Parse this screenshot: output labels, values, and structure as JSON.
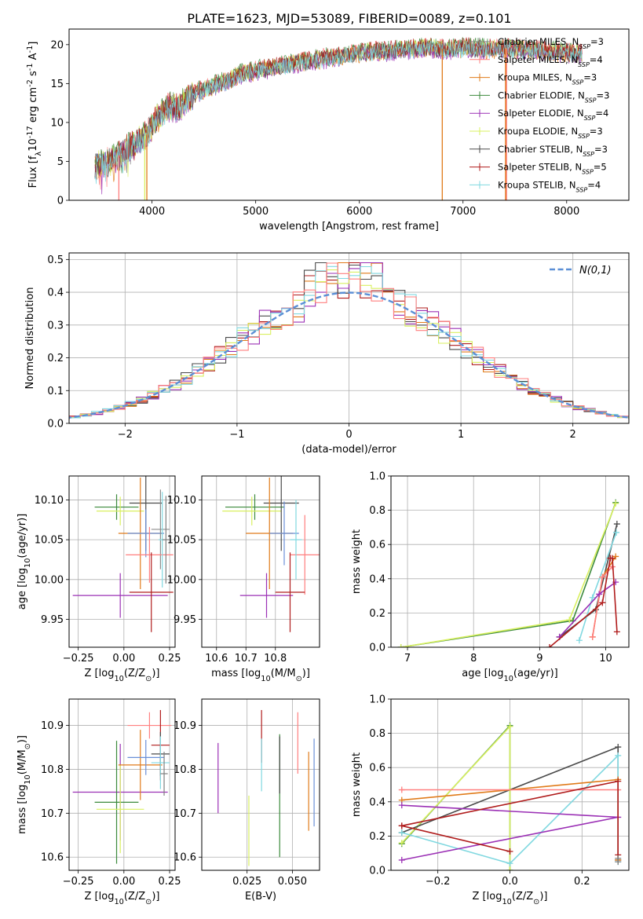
{
  "figure_title": "PLATE=1623, MJD=53089, FIBERID=0089, z=0.101",
  "colors": {
    "Chabrier MILES": "#7f7f7f",
    "Salpeter MILES": "#ff7f7f",
    "Kroupa MILES": "#e07b1a",
    "Chabrier ELODIE": "#3c8a3c",
    "Salpeter ELODIE": "#9b30b5",
    "Kroupa ELODIE": "#d9f060",
    "Chabrier STELIB": "#4a4a4a",
    "Salpeter STELIB": "#b01c1c",
    "Kroupa STELIB": "#80d8e0",
    "extra_gray": "#8c8c8c",
    "extra_blue": "#6a8fd8",
    "normal_curve": "#5b8fd6"
  },
  "chart_data": [
    {
      "id": "spectrum",
      "type": "line",
      "xlabel": "wavelength [Angstrom, rest frame]",
      "ylabel": "Flux [f$_\\lambda$10$^{-17}$ erg cm$^{-2}$ s$^{-1}$ A$^{-1}$]",
      "xlim": [
        3200,
        8600
      ],
      "ylim": [
        0,
        22
      ],
      "xticks": [
        4000,
        5000,
        6000,
        7000,
        8000
      ],
      "yticks": [
        0,
        5,
        10,
        15,
        20
      ],
      "grid": false,
      "legend_position": "top-right",
      "legend": [
        {
          "model": "Chabrier MILES",
          "nssp": "3"
        },
        {
          "model": "Salpeter MILES",
          "nssp": "4"
        },
        {
          "model": "Kroupa MILES",
          "nssp": "3"
        },
        {
          "model": "Chabrier ELODIE",
          "nssp": "3"
        },
        {
          "model": "Salpeter ELODIE",
          "nssp": "4"
        },
        {
          "model": "Kroupa ELODIE",
          "nssp": "3"
        },
        {
          "model": "Chabrier STELIB",
          "nssp": "3"
        },
        {
          "model": "Salpeter STELIB",
          "nssp": "5"
        },
        {
          "model": "Kroupa STELIB",
          "nssp": "4"
        }
      ],
      "data_series": {
        "x": [
          3450,
          3550,
          3650,
          3750,
          3850,
          3950,
          4050,
          4150,
          4250,
          4350,
          4450,
          4550,
          4650,
          4750,
          4850,
          4950,
          5050,
          5150,
          5250,
          5350,
          5450,
          5550,
          5650,
          5750,
          5850,
          5950,
          6050,
          6150,
          6250,
          6350,
          6450,
          6550,
          6650,
          6750,
          6850,
          6950,
          7050,
          7150,
          7250,
          7350,
          7450,
          7550,
          7650,
          7750,
          7850,
          7950,
          8050,
          8150
        ],
        "y": [
          4.5,
          4.8,
          5.5,
          6.5,
          7.5,
          8.5,
          10.5,
          12.0,
          11.8,
          13.0,
          14.0,
          14.5,
          15.0,
          15.5,
          16.2,
          16.5,
          16.8,
          17.0,
          17.3,
          17.6,
          17.8,
          18.0,
          18.2,
          18.4,
          18.6,
          18.8,
          19.0,
          19.2,
          19.1,
          19.3,
          19.4,
          19.5,
          19.6,
          19.5,
          19.4,
          19.5,
          19.6,
          19.5,
          19.4,
          19.5,
          19.5,
          19.4,
          19.3,
          19.2,
          19.1,
          19.0,
          18.9,
          18.8
        ]
      },
      "model_offsets": [
        0.0,
        0.2,
        -0.2,
        0.3,
        -0.3,
        0.1,
        -0.1,
        0.25,
        -0.15
      ],
      "dropouts": [
        {
          "model": "Salpeter MILES",
          "x": 3680
        },
        {
          "model": "Kroupa MILES",
          "x": 3950
        },
        {
          "model": "Kroupa ELODIE",
          "x": 3930
        },
        {
          "model": "Kroupa MILES",
          "x": 6800
        },
        {
          "model": "Salpeter MILES",
          "x": 7420
        },
        {
          "model": "Kroupa MILES",
          "x": 7410
        }
      ]
    },
    {
      "id": "residuals",
      "type": "line",
      "xlabel": "(data-model)/error",
      "ylabel": "Normed distribution",
      "xlim": [
        -2.5,
        2.5
      ],
      "ylim": [
        0,
        0.52
      ],
      "xticks": [
        -2,
        -1,
        0,
        1,
        2
      ],
      "yticks": [
        0.0,
        0.1,
        0.2,
        0.3,
        0.4,
        0.5
      ],
      "grid": true,
      "legend_position": "top-right",
      "legend": [
        "$\\mathcal{N}(0,1)$"
      ],
      "bin_width": 0.1,
      "series": [
        {
          "model": "Kroupa MILES",
          "jitter_seed": 1
        },
        {
          "model": "Salpeter STELIB",
          "jitter_seed": 2
        },
        {
          "model": "Chabrier STELIB",
          "jitter_seed": 3
        },
        {
          "model": "Salpeter ELODIE",
          "jitter_seed": 4
        },
        {
          "model": "Kroupa ELODIE",
          "jitter_seed": 5
        },
        {
          "model": "Kroupa STELIB",
          "jitter_seed": 6
        },
        {
          "model": "Salpeter MILES",
          "jitter_seed": 7
        }
      ],
      "peak_value": 0.49
    },
    {
      "id": "age_vs_z",
      "type": "scatter",
      "xlabel": "Z [log$_{10}$(Z/Z$_\\odot$)]",
      "ylabel": "age  [log$_{10}$($age/yr$)]",
      "xlim": [
        -0.3,
        0.28
      ],
      "ylim": [
        9.915,
        10.13
      ],
      "xticks": [
        -0.25,
        0.0,
        0.25
      ],
      "xticklabels": [
        "−0.25",
        "0.00",
        "0.25"
      ],
      "yticks": [
        9.95,
        10.0,
        10.05,
        10.1
      ],
      "yticklabels": [
        "9.95",
        "10.00",
        "10.05",
        "10.10"
      ],
      "grid": true,
      "points": [
        {
          "model": "Chabrier ELODIE",
          "x": -0.04,
          "y": 10.091,
          "xerr": 0.12,
          "yerr": 0.016
        },
        {
          "model": "Kroupa ELODIE",
          "x": -0.02,
          "y": 10.086,
          "xerr": 0.13,
          "yerr": 0.018
        },
        {
          "model": "Salpeter ELODIE",
          "x": -0.02,
          "y": 9.98,
          "xerr": 0.26,
          "yerr": 0.028
        },
        {
          "model": "Chabrier STELIB",
          "x": 0.12,
          "y": 10.096,
          "xerr": 0.09,
          "yerr": 0.06
        },
        {
          "model": "Kroupa MILES",
          "x": 0.09,
          "y": 10.058,
          "xerr": 0.12,
          "yerr": 0.07
        },
        {
          "model": "extra_blue",
          "x": 0.12,
          "y": 10.058,
          "xerr": 0.1,
          "yerr": 0.03
        },
        {
          "model": "extra_gray",
          "x": 0.2,
          "y": 10.063,
          "xerr": 0.05,
          "yerr": 0.05
        },
        {
          "model": "Salpeter MILES",
          "x": 0.14,
          "y": 10.031,
          "xerr": 0.13,
          "yerr": 0.035
        },
        {
          "model": "Kroupa STELIB",
          "x": 0.21,
          "y": 10.05,
          "xerr": 0.02,
          "yerr": 0.06
        },
        {
          "model": "Salpeter STELIB",
          "x": 0.15,
          "y": 9.984,
          "xerr": 0.12,
          "yerr": 0.05
        },
        {
          "model": "Chabrier MILES",
          "x": 0.23,
          "y": 10.05,
          "xerr": 0.02,
          "yerr": 0.055
        }
      ]
    },
    {
      "id": "age_vs_mass",
      "type": "scatter",
      "xlabel": "mass [log$_{10}$($M/M_\\odot$)]",
      "ylabel": "",
      "xlim": [
        10.55,
        10.95
      ],
      "ylim": [
        9.915,
        10.13
      ],
      "xticks": [
        10.6,
        10.7,
        10.8
      ],
      "yticks": [
        9.95,
        10.0,
        10.05,
        10.1
      ],
      "yticklabels": [
        "9.95",
        "10.00",
        "10.05",
        "10.10"
      ],
      "grid": true,
      "points": [
        {
          "model": "Chabrier ELODIE",
          "x": 10.73,
          "y": 10.091,
          "xerr": 0.1,
          "yerr": 0.016
        },
        {
          "model": "Kroupa ELODIE",
          "x": 10.72,
          "y": 10.086,
          "xerr": 0.1,
          "yerr": 0.018
        },
        {
          "model": "Salpeter ELODIE",
          "x": 10.77,
          "y": 9.98,
          "xerr": 0.09,
          "yerr": 0.028
        },
        {
          "model": "Chabrier STELIB",
          "x": 10.82,
          "y": 10.096,
          "xerr": 0.06,
          "yerr": 0.06
        },
        {
          "model": "Kroupa MILES",
          "x": 10.78,
          "y": 10.058,
          "xerr": 0.08,
          "yerr": 0.07
        },
        {
          "model": "extra_blue",
          "x": 10.83,
          "y": 10.058,
          "xerr": 0.05,
          "yerr": 0.04
        },
        {
          "model": "Salpeter MILES",
          "x": 10.9,
          "y": 10.031,
          "xerr": 0.05,
          "yerr": 0.05
        },
        {
          "model": "Salpeter STELIB",
          "x": 10.85,
          "y": 9.984,
          "xerr": 0.05,
          "yerr": 0.05
        },
        {
          "model": "Kroupa STELIB",
          "x": 10.87,
          "y": 10.05,
          "xerr": 0.02,
          "yerr": 0.05
        }
      ]
    },
    {
      "id": "massweight_vs_age",
      "type": "line",
      "xlabel": "age  [log$_{10}$($age/yr$)]",
      "ylabel": "mass weight",
      "xlim": [
        6.75,
        10.35
      ],
      "ylim": [
        0,
        1.0
      ],
      "xticks": [
        7,
        8,
        9,
        10
      ],
      "yticks": [
        0.0,
        0.2,
        0.4,
        0.6,
        0.8,
        1.0
      ],
      "grid": true,
      "series": [
        {
          "model": "Chabrier ELODIE",
          "x": [
            6.9,
            9.5,
            10.15
          ],
          "y": [
            0.0,
            0.155,
            0.845
          ]
        },
        {
          "model": "Kroupa ELODIE",
          "x": [
            6.9,
            9.45,
            10.15
          ],
          "y": [
            0.0,
            0.16,
            0.84
          ]
        },
        {
          "model": "Chabrier STELIB",
          "x": [
            9.3,
            9.85,
            10.17
          ],
          "y": [
            0.06,
            0.22,
            0.72
          ]
        },
        {
          "model": "Kroupa STELIB",
          "x": [
            9.6,
            9.8,
            10.16
          ],
          "y": [
            0.04,
            0.29,
            0.67
          ]
        },
        {
          "model": "Kroupa MILES",
          "x": [
            9.8,
            9.95,
            10.15
          ],
          "y": [
            0.06,
            0.41,
            0.53
          ]
        },
        {
          "model": "Salpeter MILES",
          "x": [
            9.8,
            9.95,
            10.1
          ],
          "y": [
            0.06,
            0.41,
            0.47
          ]
        },
        {
          "model": "Salpeter ELODIE",
          "x": [
            9.3,
            9.9,
            10.15
          ],
          "y": [
            0.06,
            0.31,
            0.38
          ]
        },
        {
          "model": "Salpeter STELIB",
          "x": [
            9.15,
            9.95,
            10.07,
            10.1,
            10.17
          ],
          "y": [
            0.0,
            0.26,
            0.52,
            0.52,
            0.09
          ]
        }
      ]
    },
    {
      "id": "mass_vs_z",
      "type": "scatter",
      "xlabel": "Z [log$_{10}$(Z/Z$_\\odot$)]",
      "ylabel": "mass [log$_{10}$($M/M_\\odot$)]",
      "xlim": [
        -0.3,
        0.28
      ],
      "ylim": [
        10.57,
        10.96
      ],
      "xticks": [
        -0.25,
        0.0,
        0.25
      ],
      "xticklabels": [
        "−0.25",
        "0.00",
        "0.25"
      ],
      "yticks": [
        10.6,
        10.7,
        10.8,
        10.9
      ],
      "grid": true,
      "points": [
        {
          "model": "Salpeter ELODIE",
          "x": -0.02,
          "y": 10.748,
          "xerr": 0.26,
          "yerr": 0.11
        },
        {
          "model": "Chabrier ELODIE",
          "x": -0.04,
          "y": 10.725,
          "xerr": 0.12,
          "yerr": 0.14
        },
        {
          "model": "Kroupa ELODIE",
          "x": -0.02,
          "y": 10.709,
          "xerr": 0.13,
          "yerr": 0.1
        },
        {
          "model": "Kroupa MILES",
          "x": 0.09,
          "y": 10.81,
          "xerr": 0.12,
          "yerr": 0.08
        },
        {
          "model": "Salpeter MILES",
          "x": 0.14,
          "y": 10.9,
          "xerr": 0.12,
          "yerr": 0.03
        },
        {
          "model": "Salpeter STELIB",
          "x": 0.2,
          "y": 10.855,
          "xerr": 0.05,
          "yerr": 0.08
        },
        {
          "model": "Chabrier STELIB",
          "x": 0.2,
          "y": 10.835,
          "xerr": 0.05,
          "yerr": 0.05
        },
        {
          "model": "extra_blue",
          "x": 0.12,
          "y": 10.827,
          "xerr": 0.1,
          "yerr": 0.04
        },
        {
          "model": "Kroupa STELIB",
          "x": 0.2,
          "y": 10.815,
          "xerr": 0.05,
          "yerr": 0.06
        },
        {
          "model": "Chabrier MILES",
          "x": 0.22,
          "y": 10.79,
          "xerr": 0.02,
          "yerr": 0.05
        }
      ]
    },
    {
      "id": "mass_vs_ebv",
      "type": "scatter",
      "xlabel": "E(B-V)",
      "ylabel": "",
      "xlim": [
        0.0,
        0.065
      ],
      "ylim": [
        10.57,
        10.96
      ],
      "xticks": [
        0.025,
        0.05
      ],
      "xticklabels": [
        "0.025",
        "0.050"
      ],
      "yticks": [
        10.6,
        10.7,
        10.8,
        10.9
      ],
      "grid": true,
      "points": [
        {
          "model": "Salpeter ELODIE",
          "x": 0.009,
          "y": 10.78,
          "yerr": 0.08
        },
        {
          "model": "Kroupa ELODIE",
          "x": 0.026,
          "y": 10.66,
          "yerr": 0.08
        },
        {
          "model": "Salpeter STELIB",
          "x": 0.033,
          "y": 10.875,
          "yerr": 0.06
        },
        {
          "model": "Kroupa STELIB",
          "x": 0.033,
          "y": 10.81,
          "yerr": 0.06
        },
        {
          "model": "Chabrier ELODIE",
          "x": 0.043,
          "y": 10.74,
          "yerr": 0.14
        },
        {
          "model": "Chabrier STELIB",
          "x": 0.043,
          "y": 10.81,
          "yerr": 0.065
        },
        {
          "model": "Salpeter MILES",
          "x": 0.053,
          "y": 10.86,
          "yerr": 0.07
        },
        {
          "model": "Kroupa MILES",
          "x": 0.059,
          "y": 10.75,
          "yerr": 0.09
        },
        {
          "model": "extra_blue",
          "x": 0.062,
          "y": 10.77,
          "yerr": 0.1
        }
      ]
    },
    {
      "id": "massweight_vs_z",
      "type": "line",
      "xlabel": "Z [log$_{10}$(Z/Z$_\\odot$)]",
      "ylabel": "mass weight",
      "xlim": [
        -0.33,
        0.33
      ],
      "ylim": [
        0,
        1.0
      ],
      "xticks": [
        -0.2,
        0.0,
        0.2
      ],
      "xticklabels": [
        "−0.2",
        "0.0",
        "0.2"
      ],
      "yticks": [
        0.0,
        0.2,
        0.4,
        0.6,
        0.8,
        1.0
      ],
      "grid": true,
      "series": [
        {
          "model": "Chabrier ELODIE",
          "x": [
            -0.3,
            0.0,
            0.0
          ],
          "y": [
            0.155,
            0.845,
            0.0
          ]
        },
        {
          "model": "Kroupa ELODIE",
          "x": [
            -0.3,
            0.0,
            0.0
          ],
          "y": [
            0.16,
            0.84,
            0.0
          ]
        },
        {
          "model": "Chabrier STELIB",
          "x": [
            -0.3,
            0.3,
            0.3
          ],
          "y": [
            0.22,
            0.72,
            0.06
          ]
        },
        {
          "model": "Kroupa STELIB",
          "x": [
            -0.3,
            0.0,
            0.3,
            0.3
          ],
          "y": [
            0.22,
            0.04,
            0.67,
            0.05
          ]
        },
        {
          "model": "Kroupa MILES",
          "x": [
            -0.3,
            0.3,
            0.3
          ],
          "y": [
            0.41,
            0.53,
            0.06
          ]
        },
        {
          "model": "Salpeter MILES",
          "x": [
            -0.3,
            0.3
          ],
          "y": [
            0.47,
            0.47
          ]
        },
        {
          "model": "Salpeter ELODIE",
          "x": [
            -0.3,
            0.3,
            -0.3
          ],
          "y": [
            0.38,
            0.31,
            0.06
          ]
        },
        {
          "model": "Salpeter STELIB",
          "x": [
            -0.3,
            0.0,
            -0.3,
            0.3,
            0.3
          ],
          "y": [
            0.26,
            0.11,
            0.26,
            0.52,
            0.09
          ]
        },
        {
          "model": "Chabrier MILES",
          "x": [
            0.3,
            0.3
          ],
          "y": [
            0.07,
            0.05
          ]
        }
      ]
    }
  ]
}
